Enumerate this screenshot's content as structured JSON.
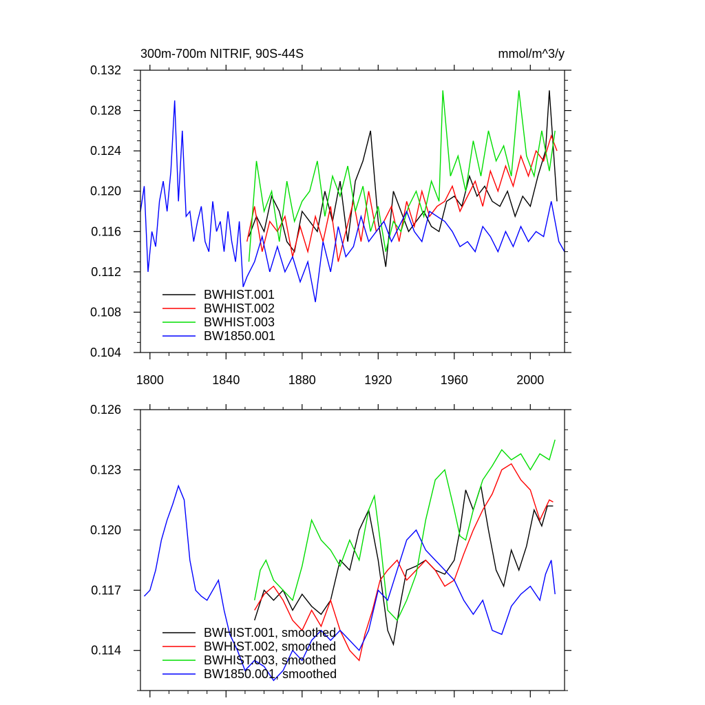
{
  "chart_data": [
    {
      "type": "line",
      "title": "300m-700m NITRIF, 90S-44S",
      "units": "mmol/m^3/y",
      "xlim": [
        1795,
        2018
      ],
      "ylim": [
        0.104,
        0.132
      ],
      "xticks": [
        1800,
        1840,
        1880,
        1920,
        1960,
        2000
      ],
      "yticks": [
        0.104,
        0.108,
        0.112,
        0.116,
        0.12,
        0.124,
        0.128,
        0.132
      ],
      "ytick_labels": [
        "0.104",
        "0.108",
        "0.112",
        "0.116",
        "0.120",
        "0.124",
        "0.128",
        "0.132"
      ],
      "legend": "bottom-left",
      "series": [
        {
          "name": "BWHIST.001",
          "color": "#000000",
          "x": [
            1852,
            1856,
            1860,
            1864,
            1868,
            1872,
            1876,
            1880,
            1884,
            1888,
            1892,
            1896,
            1900,
            1904,
            1908,
            1912,
            1916,
            1920,
            1924,
            1928,
            1932,
            1936,
            1940,
            1944,
            1948,
            1952,
            1956,
            1960,
            1964,
            1968,
            1972,
            1976,
            1980,
            1984,
            1988,
            1992,
            1996,
            2000,
            2004,
            2008,
            2010,
            2014
          ],
          "y": [
            0.1155,
            0.1175,
            0.116,
            0.1195,
            0.118,
            0.115,
            0.114,
            0.118,
            0.117,
            0.116,
            0.12,
            0.117,
            0.121,
            0.115,
            0.121,
            0.123,
            0.126,
            0.117,
            0.1125,
            0.12,
            0.118,
            0.116,
            0.117,
            0.118,
            0.1165,
            0.116,
            0.119,
            0.1195,
            0.1185,
            0.1215,
            0.1195,
            0.1205,
            0.119,
            0.1185,
            0.12,
            0.1175,
            0.1195,
            0.1185,
            0.1215,
            0.124,
            0.13,
            0.119
          ]
        },
        {
          "name": "BWHIST.002",
          "color": "#ff0000",
          "x": [
            1851,
            1855,
            1859,
            1863,
            1867,
            1871,
            1875,
            1879,
            1883,
            1887,
            1891,
            1895,
            1899,
            1903,
            1907,
            1911,
            1915,
            1919,
            1923,
            1927,
            1931,
            1935,
            1939,
            1943,
            1947,
            1951,
            1955,
            1959,
            1963,
            1967,
            1971,
            1975,
            1979,
            1983,
            1987,
            1991,
            1995,
            1999,
            2003,
            2007,
            2011,
            2014
          ],
          "y": [
            0.115,
            0.1185,
            0.114,
            0.117,
            0.116,
            0.1175,
            0.1135,
            0.1165,
            0.114,
            0.1175,
            0.115,
            0.1185,
            0.113,
            0.116,
            0.119,
            0.115,
            0.12,
            0.116,
            0.117,
            0.1185,
            0.115,
            0.119,
            0.1165,
            0.12,
            0.1175,
            0.1185,
            0.119,
            0.1205,
            0.118,
            0.1195,
            0.121,
            0.1185,
            0.122,
            0.12,
            0.1225,
            0.1205,
            0.1235,
            0.1215,
            0.124,
            0.123,
            0.1255,
            0.124
          ]
        },
        {
          "name": "BWHIST.003",
          "color": "#00dd00",
          "x": [
            1852,
            1856,
            1860,
            1864,
            1868,
            1872,
            1876,
            1880,
            1884,
            1888,
            1892,
            1896,
            1900,
            1904,
            1908,
            1912,
            1916,
            1920,
            1924,
            1928,
            1932,
            1936,
            1940,
            1944,
            1948,
            1952,
            1954,
            1958,
            1962,
            1966,
            1970,
            1974,
            1978,
            1982,
            1986,
            1990,
            1994,
            1998,
            2002,
            2006,
            2010,
            2013
          ],
          "y": [
            0.113,
            0.123,
            0.118,
            0.12,
            0.115,
            0.121,
            0.117,
            0.119,
            0.12,
            0.123,
            0.1175,
            0.1215,
            0.1195,
            0.1225,
            0.118,
            0.1205,
            0.116,
            0.1185,
            0.114,
            0.117,
            0.116,
            0.1185,
            0.12,
            0.1175,
            0.121,
            0.119,
            0.13,
            0.1215,
            0.1235,
            0.12,
            0.125,
            0.1215,
            0.126,
            0.123,
            0.1245,
            0.1215,
            0.13,
            0.1235,
            0.1215,
            0.126,
            0.122,
            0.126
          ]
        },
        {
          "name": "BW1850.001",
          "color": "#0000ff",
          "x": [
            1795,
            1797,
            1799,
            1801,
            1803,
            1805,
            1807,
            1809,
            1811,
            1813,
            1815,
            1817,
            1819,
            1821,
            1823,
            1825,
            1827,
            1829,
            1831,
            1833,
            1835,
            1837,
            1839,
            1841,
            1843,
            1845,
            1847,
            1849,
            1851,
            1855,
            1859,
            1863,
            1867,
            1871,
            1875,
            1879,
            1883,
            1887,
            1891,
            1895,
            1899,
            1903,
            1907,
            1911,
            1915,
            1919,
            1923,
            1927,
            1931,
            1935,
            1939,
            1943,
            1947,
            1951,
            1955,
            1959,
            1963,
            1967,
            1971,
            1975,
            1979,
            1983,
            1987,
            1991,
            1995,
            1999,
            2003,
            2007,
            2011,
            2015,
            2018
          ],
          "y": [
            0.118,
            0.1205,
            0.112,
            0.116,
            0.1145,
            0.119,
            0.121,
            0.118,
            0.122,
            0.129,
            0.119,
            0.126,
            0.1175,
            0.118,
            0.115,
            0.117,
            0.1185,
            0.115,
            0.114,
            0.119,
            0.116,
            0.117,
            0.114,
            0.118,
            0.115,
            0.113,
            0.117,
            0.1105,
            0.1115,
            0.113,
            0.1155,
            0.112,
            0.1145,
            0.112,
            0.1135,
            0.111,
            0.113,
            0.109,
            0.115,
            0.112,
            0.1165,
            0.1135,
            0.1145,
            0.1175,
            0.115,
            0.116,
            0.117,
            0.115,
            0.1165,
            0.118,
            0.116,
            0.115,
            0.118,
            0.1175,
            0.117,
            0.116,
            0.1145,
            0.115,
            0.114,
            0.1165,
            0.1155,
            0.114,
            0.116,
            0.1145,
            0.1165,
            0.115,
            0.116,
            0.1155,
            0.119,
            0.115,
            0.114
          ]
        }
      ]
    },
    {
      "type": "line",
      "title": "",
      "xlim": [
        1795,
        2018
      ],
      "ylim": [
        0.112,
        0.126
      ],
      "xticks": [
        1800,
        1840,
        1880,
        1920,
        1960,
        2000
      ],
      "yticks": [
        0.114,
        0.117,
        0.12,
        0.123,
        0.126
      ],
      "ytick_labels": [
        "0.114",
        "0.117",
        "0.120",
        "0.123",
        "0.126"
      ],
      "legend": "bottom-left",
      "series": [
        {
          "name": "BWHIST.001, smoothed",
          "color": "#000000",
          "x": [
            1855,
            1860,
            1865,
            1870,
            1875,
            1880,
            1885,
            1890,
            1895,
            1900,
            1905,
            1910,
            1915,
            1920,
            1925,
            1928,
            1931,
            1935,
            1940,
            1945,
            1950,
            1955,
            1960,
            1963,
            1966,
            1970,
            1974,
            1978,
            1982,
            1986,
            1990,
            1994,
            1998,
            2002,
            2006,
            2009,
            2012
          ],
          "y": [
            0.1155,
            0.117,
            0.1165,
            0.117,
            0.116,
            0.1168,
            0.1162,
            0.1158,
            0.1165,
            0.1185,
            0.118,
            0.12,
            0.121,
            0.1185,
            0.115,
            0.1143,
            0.116,
            0.118,
            0.1182,
            0.1185,
            0.118,
            0.1178,
            0.1185,
            0.12,
            0.122,
            0.121,
            0.1222,
            0.12,
            0.118,
            0.1172,
            0.119,
            0.118,
            0.1192,
            0.121,
            0.1202,
            0.1212,
            0.1212
          ]
        },
        {
          "name": "BWHIST.002, smoothed",
          "color": "#ff0000",
          "x": [
            1855,
            1860,
            1865,
            1870,
            1875,
            1880,
            1885,
            1890,
            1895,
            1900,
            1905,
            1910,
            1913,
            1917,
            1921,
            1925,
            1930,
            1935,
            1940,
            1945,
            1950,
            1955,
            1960,
            1965,
            1970,
            1975,
            1980,
            1985,
            1990,
            1995,
            2000,
            2005,
            2010,
            2012
          ],
          "y": [
            0.116,
            0.1168,
            0.1172,
            0.1165,
            0.1155,
            0.115,
            0.116,
            0.1152,
            0.1165,
            0.115,
            0.114,
            0.1135,
            0.1148,
            0.116,
            0.1175,
            0.118,
            0.1185,
            0.1175,
            0.118,
            0.1185,
            0.118,
            0.1172,
            0.1175,
            0.1188,
            0.12,
            0.121,
            0.1218,
            0.123,
            0.1233,
            0.1225,
            0.122,
            0.1205,
            0.1215,
            0.1214
          ]
        },
        {
          "name": "BWHIST.003, smoothed",
          "color": "#00dd00",
          "x": [
            1855,
            1858,
            1861,
            1865,
            1870,
            1875,
            1880,
            1885,
            1890,
            1895,
            1900,
            1905,
            1910,
            1915,
            1918,
            1921,
            1925,
            1930,
            1935,
            1940,
            1945,
            1950,
            1955,
            1960,
            1963,
            1966,
            1970,
            1975,
            1980,
            1985,
            1990,
            1995,
            2000,
            2005,
            2010,
            2013
          ],
          "y": [
            0.1165,
            0.118,
            0.1185,
            0.1175,
            0.117,
            0.1165,
            0.1182,
            0.1205,
            0.1195,
            0.119,
            0.1182,
            0.1195,
            0.1185,
            0.121,
            0.1217,
            0.1195,
            0.116,
            0.1155,
            0.1165,
            0.1178,
            0.1205,
            0.1225,
            0.123,
            0.121,
            0.1197,
            0.1195,
            0.121,
            0.1225,
            0.1232,
            0.124,
            0.1235,
            0.1238,
            0.123,
            0.1238,
            0.1235,
            0.1245
          ]
        },
        {
          "name": "BW1850.001, smoothed",
          "color": "#0000ff",
          "x": [
            1797,
            1800,
            1803,
            1806,
            1809,
            1812,
            1815,
            1818,
            1821,
            1824,
            1827,
            1830,
            1833,
            1836,
            1839,
            1842,
            1846,
            1850,
            1855,
            1860,
            1865,
            1870,
            1875,
            1880,
            1885,
            1890,
            1895,
            1900,
            1905,
            1910,
            1915,
            1920,
            1925,
            1930,
            1935,
            1940,
            1945,
            1950,
            1955,
            1960,
            1965,
            1970,
            1975,
            1980,
            1985,
            1990,
            1995,
            2000,
            2005,
            2008,
            2011,
            2013
          ],
          "y": [
            0.1167,
            0.117,
            0.118,
            0.1195,
            0.1205,
            0.1213,
            0.1222,
            0.1215,
            0.1185,
            0.117,
            0.1167,
            0.1165,
            0.117,
            0.1175,
            0.116,
            0.1148,
            0.114,
            0.113,
            0.1135,
            0.1132,
            0.1125,
            0.113,
            0.114,
            0.1135,
            0.1145,
            0.115,
            0.1145,
            0.115,
            0.1145,
            0.114,
            0.115,
            0.117,
            0.1165,
            0.118,
            0.1195,
            0.12,
            0.119,
            0.1185,
            0.118,
            0.1175,
            0.1165,
            0.1158,
            0.1165,
            0.115,
            0.1148,
            0.1162,
            0.1168,
            0.1172,
            0.1165,
            0.1178,
            0.1185,
            0.1168
          ]
        }
      ]
    }
  ]
}
